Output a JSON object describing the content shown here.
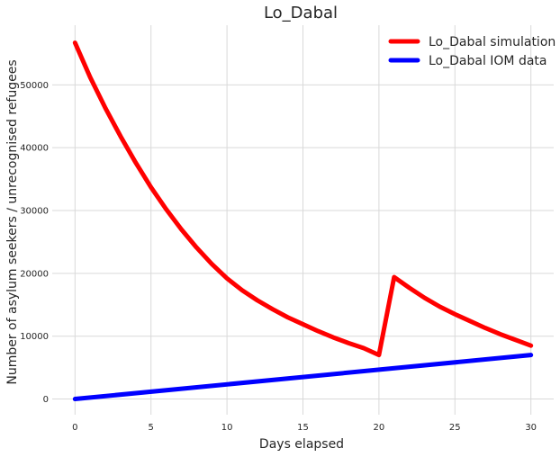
{
  "chart_data": {
    "type": "line",
    "title": "Lo_Dabal",
    "xlabel": "Days elapsed",
    "ylabel": "Number of asylum seekers / unrecognised refugees",
    "xlim": [
      -1.5,
      31.5
    ],
    "ylim": [
      -2500,
      59500
    ],
    "xticks": [
      0,
      5,
      10,
      15,
      20,
      25,
      30
    ],
    "yticks": [
      0,
      10000,
      20000,
      30000,
      40000,
      50000
    ],
    "grid": true,
    "legend_position": "top-right",
    "series": [
      {
        "name": "Lo_Dabal simulation",
        "color": "#ff0000",
        "x": [
          0,
          1,
          2,
          3,
          4,
          5,
          6,
          7,
          8,
          9,
          10,
          11,
          12,
          13,
          14,
          15,
          16,
          17,
          18,
          19,
          20,
          21,
          22,
          23,
          24,
          25,
          26,
          27,
          28,
          29,
          30
        ],
        "y": [
          56700,
          51200,
          46300,
          41800,
          37600,
          33700,
          30200,
          27000,
          24100,
          21500,
          19200,
          17300,
          15700,
          14300,
          13000,
          11900,
          10800,
          9800,
          8900,
          8100,
          7000,
          19400,
          17700,
          16100,
          14700,
          13500,
          12400,
          11300,
          10300,
          9400,
          8500
        ]
      },
      {
        "name": "Lo_Dabal IOM data",
        "color": "#0000ff",
        "x": [
          0,
          30
        ],
        "y": [
          0,
          7000
        ]
      }
    ]
  }
}
